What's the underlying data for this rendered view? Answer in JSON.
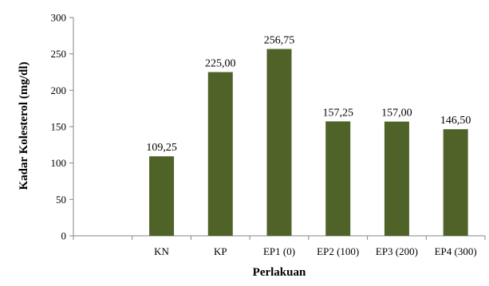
{
  "chart_data": {
    "type": "bar",
    "title": "",
    "xlabel": "Perlakuan",
    "ylabel": "Kadar Kolesterol (mg/dl)",
    "categories": [
      "",
      "KN",
      "KP",
      "EP1 (0)",
      "EP2 (100)",
      "EP3 (200)",
      "EP4 (300)"
    ],
    "values": [
      null,
      109.25,
      225.0,
      256.75,
      157.25,
      157.0,
      146.5
    ],
    "data_labels": [
      "",
      "109,25",
      "225,00",
      "256,75",
      "157,25",
      "157,00",
      "146,50"
    ],
    "ylim": [
      0,
      300
    ],
    "yticks": [
      0,
      50,
      100,
      150,
      200,
      250,
      300
    ],
    "ytick_labels": [
      "0",
      "50",
      "100",
      "150",
      "200",
      "250",
      "300"
    ],
    "grid": false,
    "legend": "none",
    "bar_color": "#4f6228"
  }
}
